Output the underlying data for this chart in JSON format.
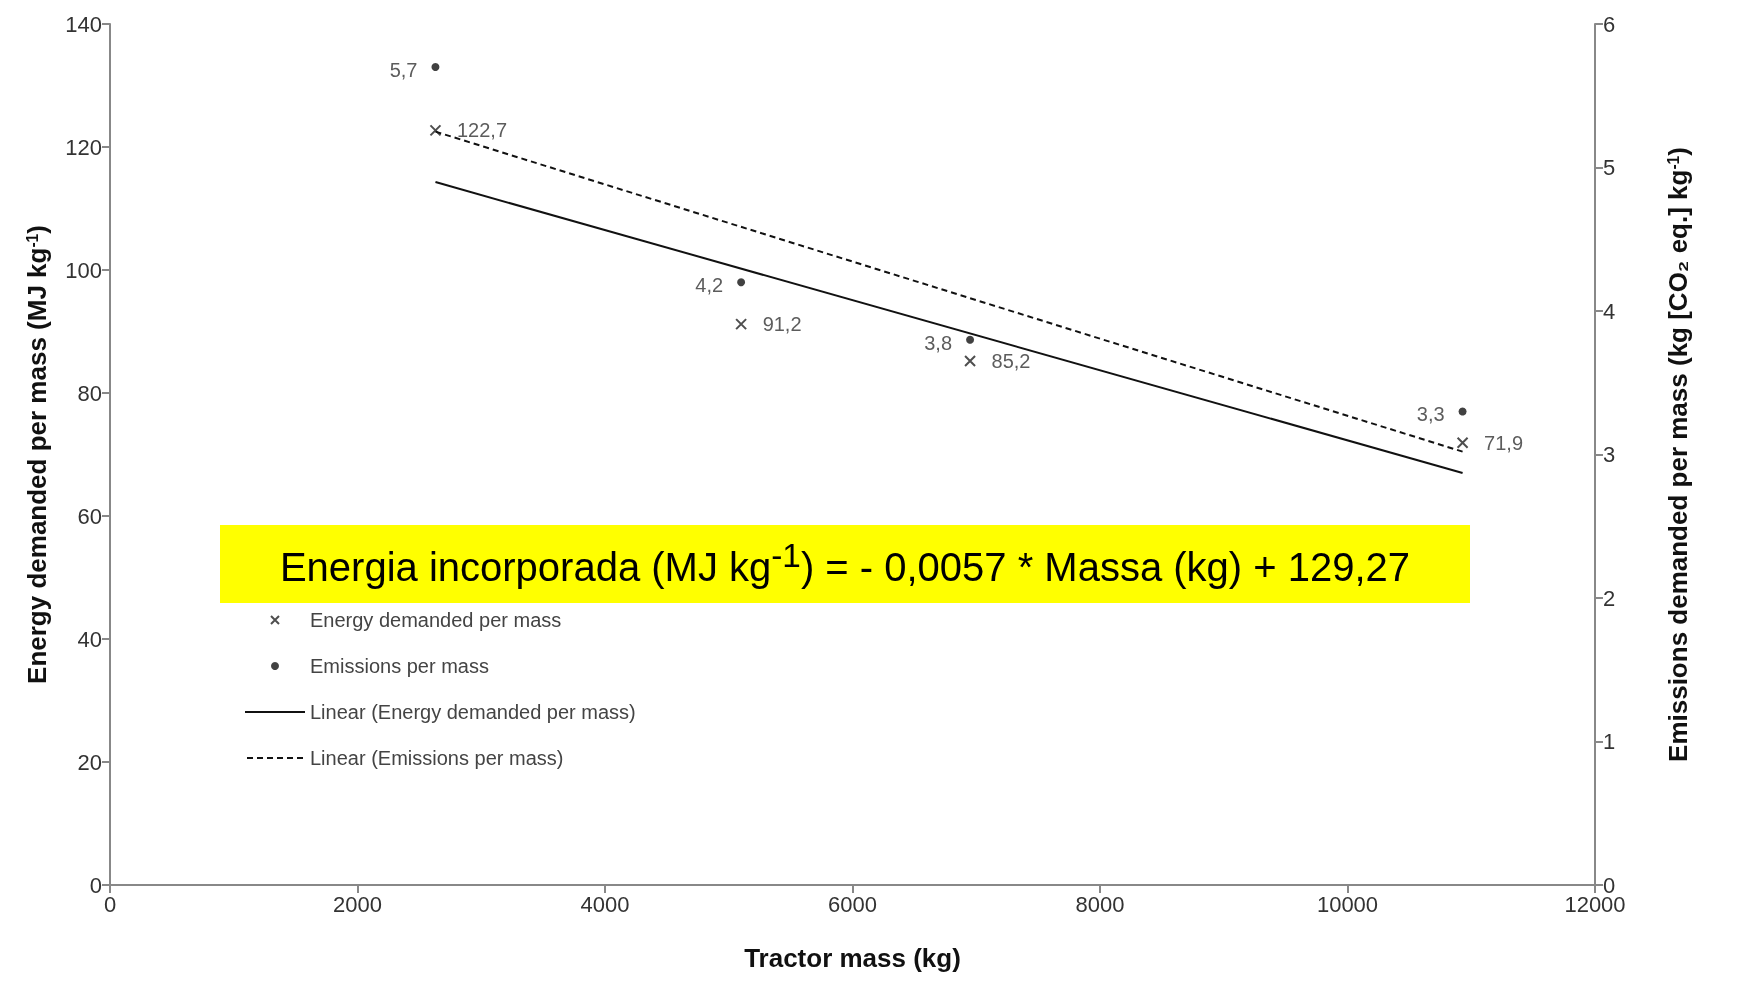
{
  "chart_data": {
    "type": "scatter",
    "xlabel": "Tractor mass (kg)",
    "ylabel": "Energy demanded per mass (MJ kg$^{-1}$)",
    "y2label": "Emissions demanded per mass (kg [CO₂ eq.] kg$^{-1}$)",
    "xlim": [
      0,
      12000
    ],
    "xticks": [
      0,
      2000,
      4000,
      6000,
      8000,
      10000,
      12000
    ],
    "ylim": [
      0,
      140
    ],
    "yticks": [
      0,
      20,
      40,
      60,
      80,
      100,
      120,
      140
    ],
    "y2lim": [
      0,
      6
    ],
    "y2ticks": [
      0,
      1,
      2,
      3,
      4,
      5,
      6
    ],
    "grid": false,
    "legend": "bottom left",
    "annotations": [
      "Energia incorporada (MJ kg$^{-1}$) = - 0,0057 * Massa (kg) + 129,27"
    ],
    "series": [
      {
        "name": "Energy demanded per mass",
        "type": "scatter",
        "marker": "cross",
        "color": "#222222",
        "x": [
          2630,
          5100,
          6950,
          10930
        ],
        "values": [
          122.7,
          91.2,
          85.2,
          71.9
        ],
        "value_labels": [
          "122,7",
          "91,2",
          "85,2",
          "71,9"
        ]
      },
      {
        "name": "Emissions per mass",
        "type": "scatter",
        "marker": "circle",
        "color": "#111111",
        "axis": "y2",
        "x": [
          2630,
          5100,
          6950,
          10930
        ],
        "values": [
          5.7,
          4.2,
          3.8,
          3.3
        ],
        "value_labels": [
          "5,7",
          "4,2",
          "3,8",
          "3,3"
        ]
      },
      {
        "name": "Linear (Energy demanded per mass)",
        "type": "line",
        "marker": "none",
        "line_style": "solid",
        "color": "#111111",
        "x": [
          2630,
          10930
        ],
        "values": [
          114.3,
          67.0
        ]
      },
      {
        "name": "Linear (Emissions per mass)",
        "type": "line",
        "marker": "none",
        "line_style": "dashed",
        "color": "#111111",
        "axis": "y2",
        "x": [
          2630,
          10930
        ],
        "values": [
          5.25,
          3.02
        ]
      }
    ]
  }
}
